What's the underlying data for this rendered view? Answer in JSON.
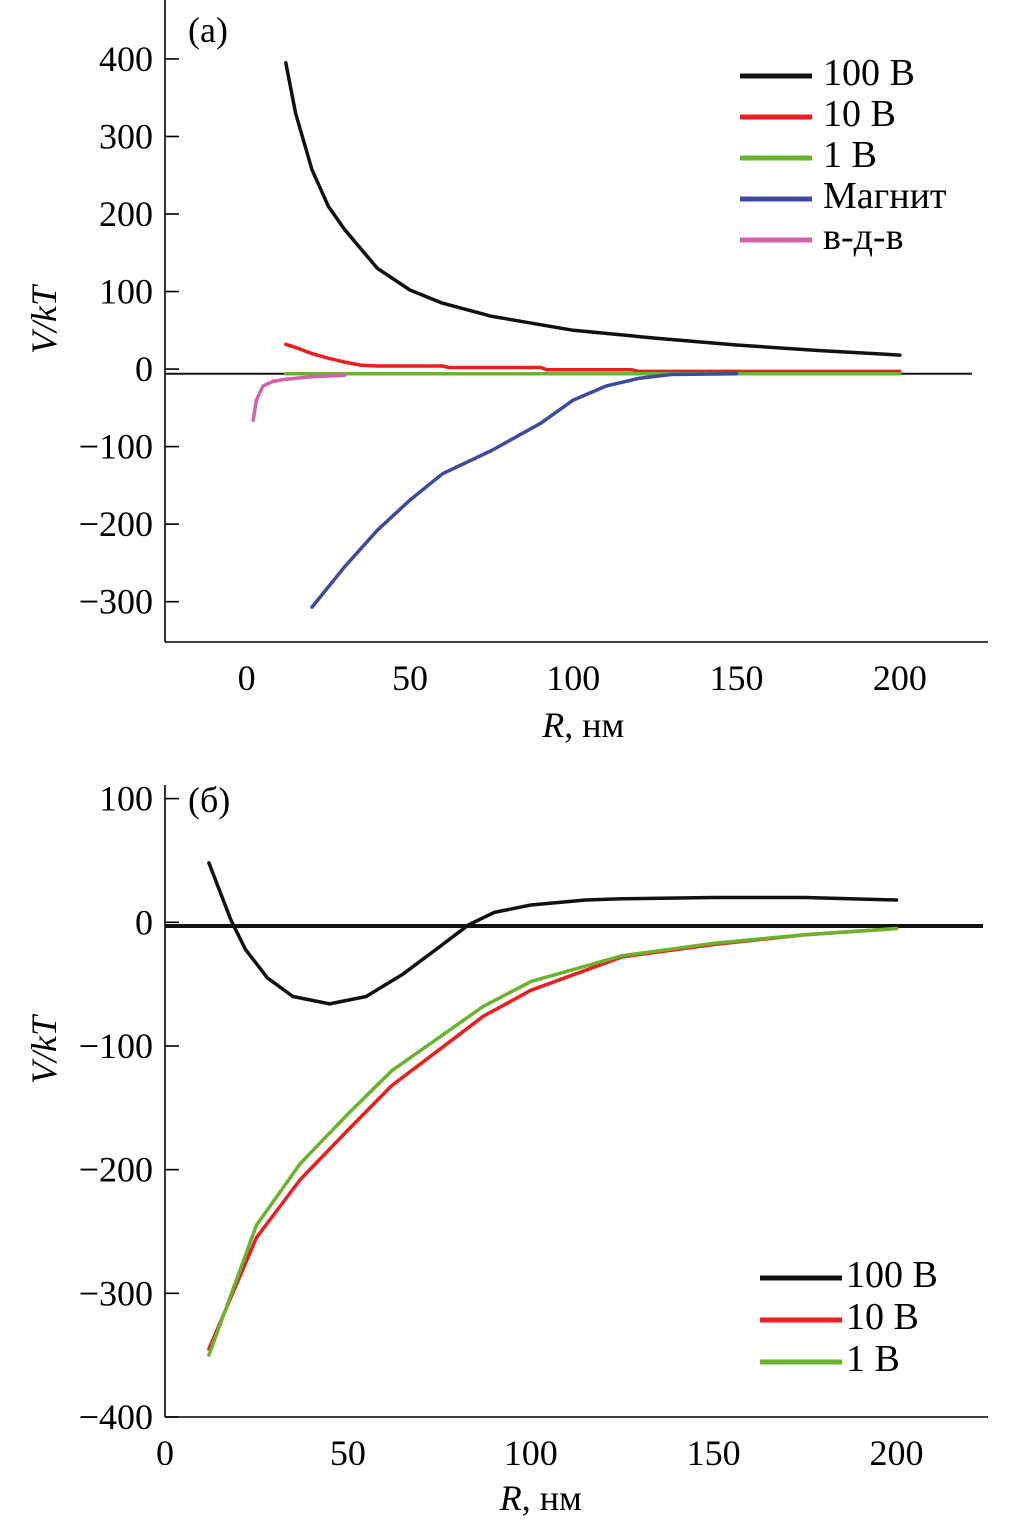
{
  "colors": {
    "100 В": "#111111",
    "10 В": "#ee1c1c",
    "1 В": "#6ab42d",
    "Магнит": "#3c4aa0",
    "в-д-в": "#d560a8"
  },
  "chart_data": [
    {
      "type": "line",
      "panel_label": "(а)",
      "xlabel_italic": "R",
      "xlabel_rest": ", нм",
      "ylabel": "V/kT",
      "xlim": [
        -25,
        227
      ],
      "ylim": [
        -352,
        476
      ],
      "xticks": [
        0,
        50,
        100,
        150,
        200
      ],
      "yticks": [
        400,
        300,
        200,
        100,
        0,
        -100,
        -200,
        -300
      ],
      "ytick_labels": [
        "400",
        "300",
        "200",
        "100",
        "0",
        "−100",
        "−200",
        "−300"
      ],
      "reference_line_y": -6,
      "grid": false,
      "legend_position": "top-right",
      "series": [
        {
          "name": "100 В",
          "x": [
            12,
            15,
            20,
            25,
            30,
            40,
            50,
            60,
            75,
            100,
            125,
            150,
            175,
            200
          ],
          "y": [
            395,
            330,
            257,
            210,
            180,
            130,
            102,
            85,
            68,
            50,
            40,
            31,
            24,
            18
          ]
        },
        {
          "name": "10 В",
          "x": [
            12,
            15,
            20,
            25,
            30,
            35,
            40,
            60,
            62,
            90,
            92,
            118,
            120,
            200
          ],
          "y": [
            32,
            28,
            20,
            14,
            9,
            5,
            4,
            4,
            2,
            2,
            -1,
            -1,
            -3,
            -3
          ]
        },
        {
          "name": "1 В",
          "x": [
            12,
            50,
            100,
            150,
            200
          ],
          "y": [
            -6,
            -6,
            -6,
            -6,
            -6
          ]
        },
        {
          "name": "Магнит",
          "x": [
            20,
            30,
            40,
            50,
            60,
            75,
            90,
            100,
            110,
            120,
            130,
            150
          ],
          "y": [
            -307,
            -255,
            -208,
            -169,
            -135,
            -105,
            -70,
            -40,
            -22,
            -12,
            -7,
            -6
          ]
        },
        {
          "name": "в-д-в",
          "x": [
            2,
            3,
            5,
            8,
            12,
            20,
            30
          ],
          "y": [
            -66,
            -40,
            -22,
            -16,
            -13,
            -10,
            -8
          ]
        }
      ]
    },
    {
      "type": "line",
      "panel_label": "(б)",
      "xlabel_italic": "R",
      "xlabel_rest": ", нм",
      "ylabel": "V/kT",
      "xlim": [
        0,
        225
      ],
      "ylim": [
        -400,
        111
      ],
      "xticks": [
        0,
        50,
        100,
        150,
        200
      ],
      "yticks": [
        100,
        0,
        -100,
        -200,
        -300,
        -400
      ],
      "ytick_labels": [
        "100",
        "0",
        "−100",
        "−200",
        "−300",
        "−400"
      ],
      "reference_line_y": -3,
      "grid": false,
      "legend_position": "bottom-right",
      "series": [
        {
          "name": "100 В",
          "x": [
            12,
            15,
            18,
            22,
            28,
            35,
            45,
            55,
            65,
            75,
            83,
            90,
            100,
            115,
            125,
            150,
            175,
            200
          ],
          "y": [
            48,
            25,
            2,
            -22,
            -45,
            -60,
            -66,
            -60,
            -42,
            -20,
            -2,
            8,
            14,
            18,
            19,
            20,
            20,
            18
          ]
        },
        {
          "name": "10 В",
          "x": [
            12,
            25,
            37,
            50,
            62,
            75,
            87,
            100,
            125,
            150,
            175,
            200
          ],
          "y": [
            -345,
            -255,
            -208,
            -168,
            -132,
            -103,
            -76,
            -55,
            -28,
            -18,
            -10,
            -5
          ]
        },
        {
          "name": "1 В",
          "x": [
            12,
            25,
            37,
            50,
            62,
            75,
            87,
            100,
            125,
            150,
            175,
            200
          ],
          "y": [
            -350,
            -245,
            -195,
            -155,
            -120,
            -93,
            -68,
            -48,
            -27,
            -17,
            -10,
            -5
          ]
        }
      ]
    }
  ]
}
